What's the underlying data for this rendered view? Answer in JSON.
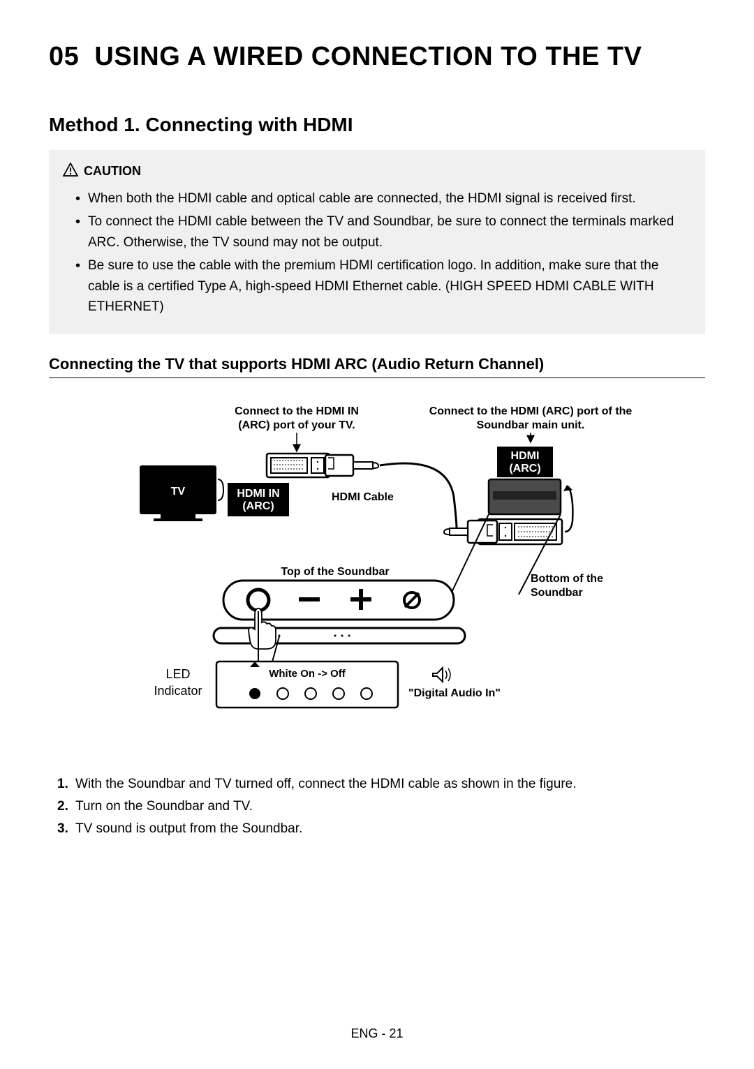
{
  "chapter": {
    "number": "05",
    "title": "USING A WIRED CONNECTION TO THE TV"
  },
  "section_title": "Method 1. Connecting with HDMI",
  "caution": {
    "label": "CAUTION",
    "items": [
      "When both the HDMI cable and optical cable are connected, the HDMI signal is received first.",
      "To connect the HDMI cable between the TV and Soundbar, be sure to connect the terminals marked ARC. Otherwise, the TV sound may not be output.",
      "Be sure to use the cable with the premium HDMI certification logo. In addition, make sure that the cable is a certified Type A, high-speed HDMI Ethernet cable. (HIGH SPEED HDMI CABLE WITH ETHERNET)"
    ]
  },
  "subsection_title": "Connecting the TV that supports HDMI ARC (Audio Return Channel)",
  "diagram": {
    "tv_connect_line1": "Connect to the HDMI IN",
    "tv_connect_line2": "(ARC) port of your TV.",
    "sb_connect_line1": "Connect to the HDMI (ARC) port of the",
    "sb_connect_line2": "Soundbar main unit.",
    "tv_label": "TV",
    "hdmi_in_line1": "HDMI IN",
    "hdmi_in_line2": "(ARC)",
    "hdmi_cable": "HDMI Cable",
    "hdmi_arc_line1": "HDMI",
    "hdmi_arc_line2": "(ARC)",
    "top_soundbar": "Top of the Soundbar",
    "bottom_soundbar_line1": "Bottom of the",
    "bottom_soundbar_line2": "Soundbar",
    "led_line1": "LED",
    "led_line2": "Indicator",
    "white_on_off": "White On -> Off",
    "digital_audio": "\"Digital Audio In\""
  },
  "steps": [
    "With the Soundbar and TV turned off, connect the HDMI cable as shown in the figure.",
    "Turn on the Soundbar and TV.",
    "TV sound is output from the Soundbar."
  ],
  "footer": "ENG - 21"
}
